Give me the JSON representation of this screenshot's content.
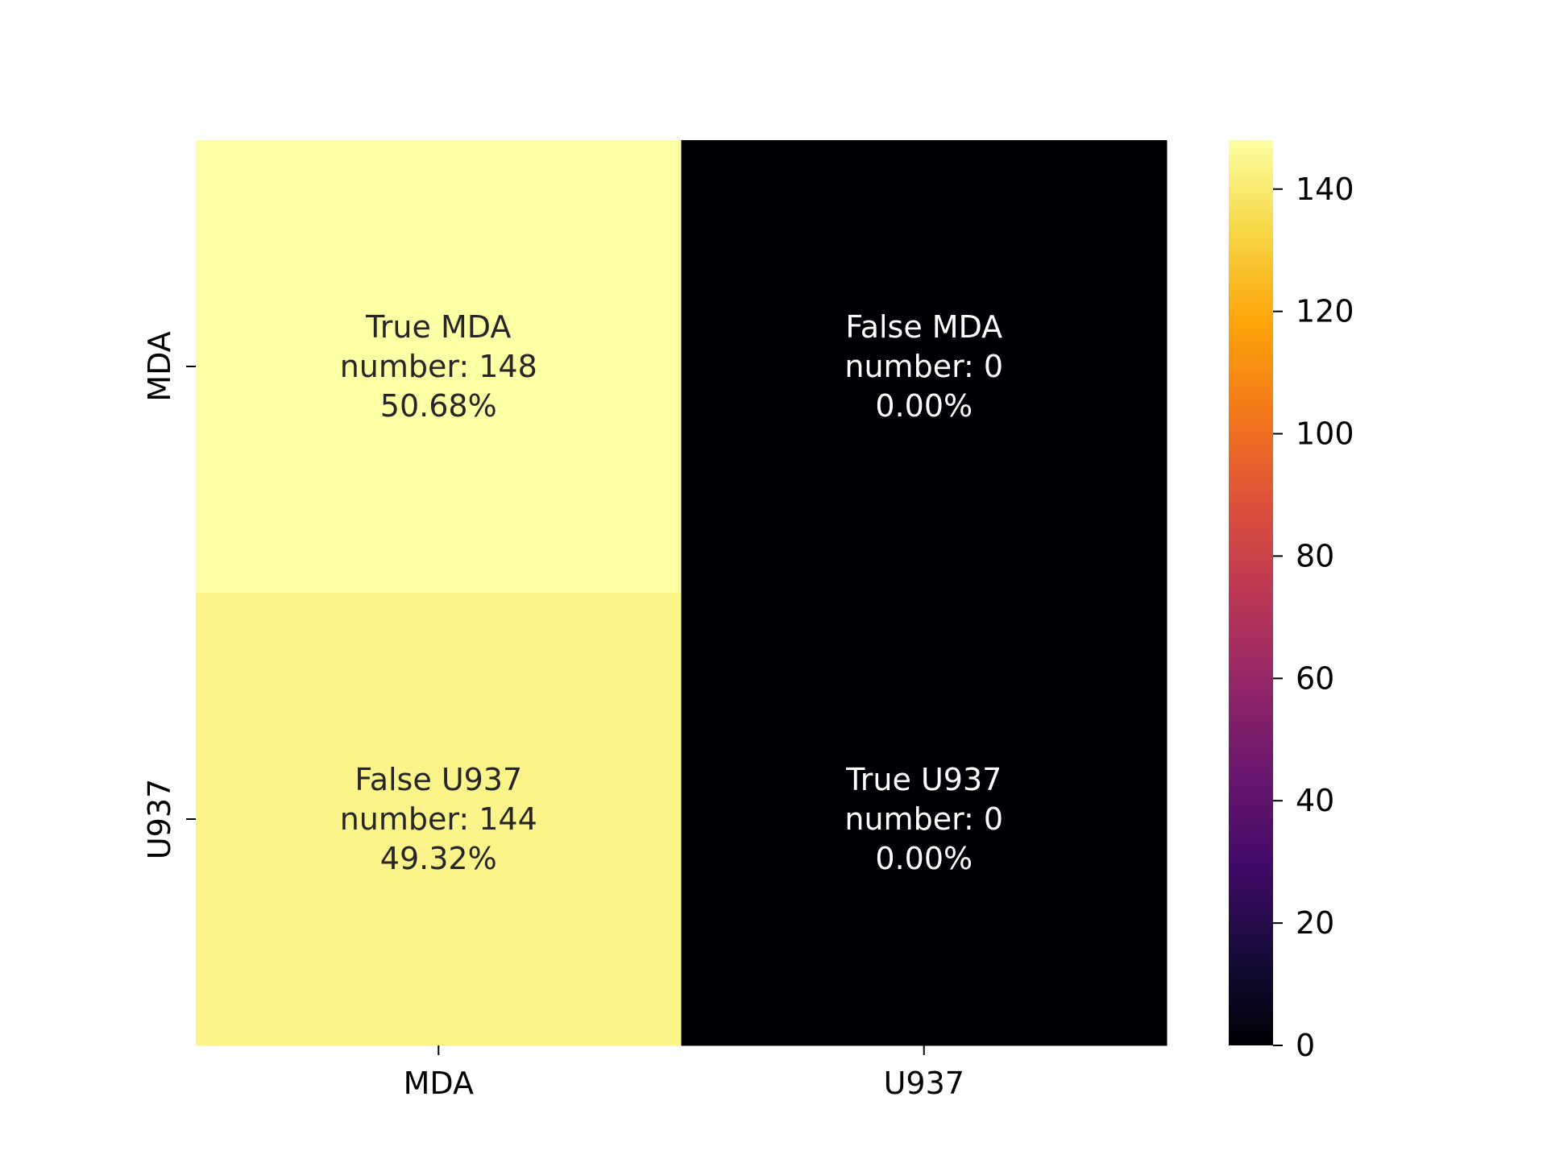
{
  "chart_data": {
    "type": "heatmap",
    "title": "",
    "xlabel": "",
    "ylabel": "",
    "x_categories": [
      "MDA",
      "U937"
    ],
    "y_categories": [
      "MDA",
      "U937"
    ],
    "values": [
      [
        148,
        0
      ],
      [
        144,
        0
      ]
    ],
    "cell_labels": [
      [
        {
          "name": "True MDA",
          "count": "number: 148",
          "percent": "50.68%"
        },
        {
          "name": "False MDA",
          "count": "number: 0",
          "percent": "0.00%"
        }
      ],
      [
        {
          "name": "False U937",
          "count": "number: 144",
          "percent": "49.32%"
        },
        {
          "name": "True U937",
          "count": "number: 0",
          "percent": "0.00%"
        }
      ]
    ],
    "colormap": "inferno",
    "colorbar": {
      "range": [
        0,
        148
      ],
      "ticks": [
        0,
        20,
        40,
        60,
        80,
        100,
        120,
        140
      ]
    },
    "colors": {
      "light_text": "#ffffff",
      "dark_text": "#262626",
      "axis": "#000000"
    }
  }
}
